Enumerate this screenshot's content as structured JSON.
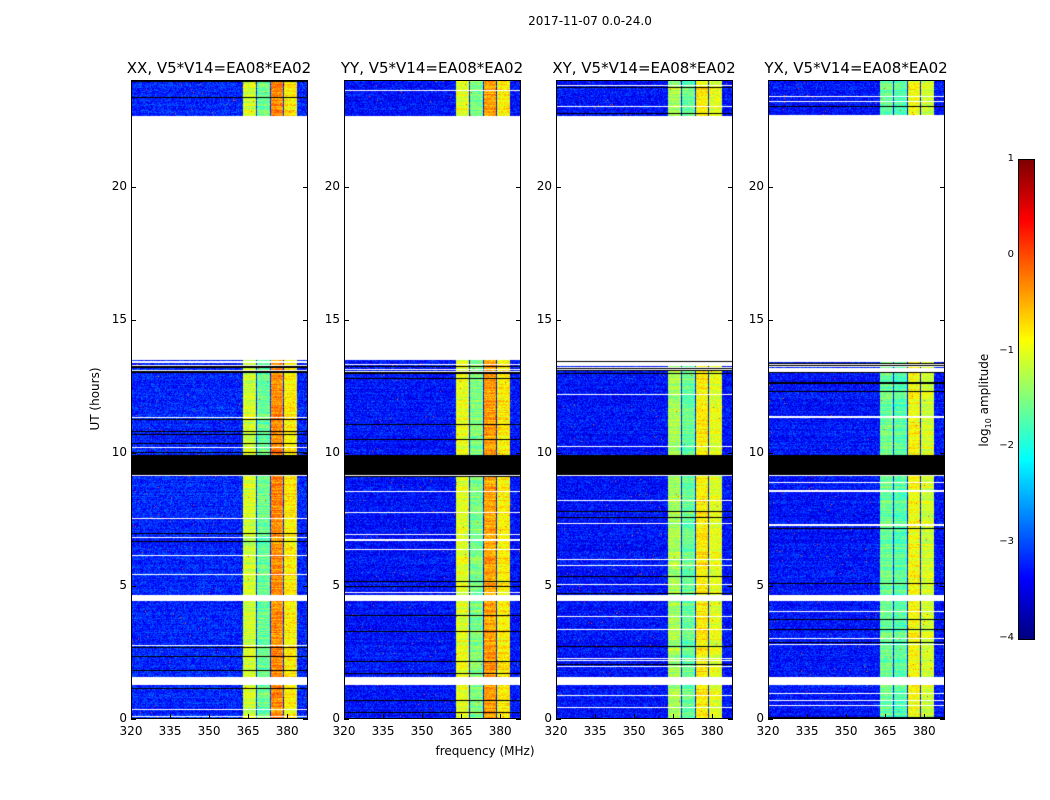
{
  "title": "2017-11-07 0.0-24.0",
  "chart_data": {
    "type": "heatmap",
    "title": "2017-11-07 0.0-24.0",
    "xlabel": "frequency (MHz)",
    "ylabel": "UT (hours)",
    "xlim": [
      320,
      388
    ],
    "ylim": [
      0,
      24
    ],
    "xticks": [
      "320",
      "335",
      "350",
      "365",
      "380"
    ],
    "xtick_values": [
      320,
      335,
      350,
      365,
      380
    ],
    "yticks": [
      "0",
      "5",
      "10",
      "15",
      "20"
    ],
    "ytick_values": [
      0,
      5,
      10,
      15,
      20
    ],
    "colorbar": {
      "label": "log10 amplitude",
      "label_main": "log",
      "label_sub": "10",
      "label_tail": " amplitude",
      "range": [
        -4,
        1
      ],
      "ticks": [
        "1",
        "0",
        "−1",
        "−2",
        "−3",
        "−4"
      ],
      "tick_values": [
        1,
        0,
        -1,
        -2,
        -3,
        -4
      ],
      "colormap": "jet"
    },
    "panels": [
      {
        "title": "XX, V5*V14=EA08*EA02",
        "background": -3.2,
        "bands": [
          -1.1,
          -1.6,
          -0.3,
          -0.8
        ]
      },
      {
        "title": "YY, V5*V14=EA08*EA02",
        "background": -3.3,
        "bands": [
          -1.0,
          -1.5,
          -0.4,
          -0.8
        ]
      },
      {
        "title": "XY, V5*V14=EA08*EA02",
        "background": -3.3,
        "bands": [
          -1.3,
          -1.6,
          -0.8,
          -1.0
        ]
      },
      {
        "title": "YX, V5*V14=EA08*EA02",
        "background": -3.3,
        "bands": [
          -1.6,
          -1.7,
          -0.9,
          -1.1
        ]
      }
    ],
    "band_edges_mhz": [
      [
        363,
        368
      ],
      [
        368.5,
        373.5
      ],
      [
        374,
        378.5
      ],
      [
        379,
        384
      ]
    ],
    "time_segments": [
      {
        "from": 0,
        "to": 1.25,
        "state": "data"
      },
      {
        "from": 1.25,
        "to": 1.55,
        "state": "flagged"
      },
      {
        "from": 1.55,
        "to": 2.25,
        "state": "data"
      },
      {
        "from": 2.25,
        "to": 4.4,
        "state": "data"
      },
      {
        "from": 4.4,
        "to": 4.65,
        "state": "flagged"
      },
      {
        "from": 4.65,
        "to": 9.1,
        "state": "data"
      },
      {
        "from": 9.15,
        "to": 9.9,
        "state": "blank"
      },
      {
        "from": 9.9,
        "to": 13.0,
        "state": "data"
      },
      {
        "from": 13.0,
        "to": 13.5,
        "state": "sparse"
      },
      {
        "from": 13.5,
        "to": 22.7,
        "state": "flagged"
      },
      {
        "from": 22.7,
        "to": 24,
        "state": "data"
      }
    ]
  }
}
